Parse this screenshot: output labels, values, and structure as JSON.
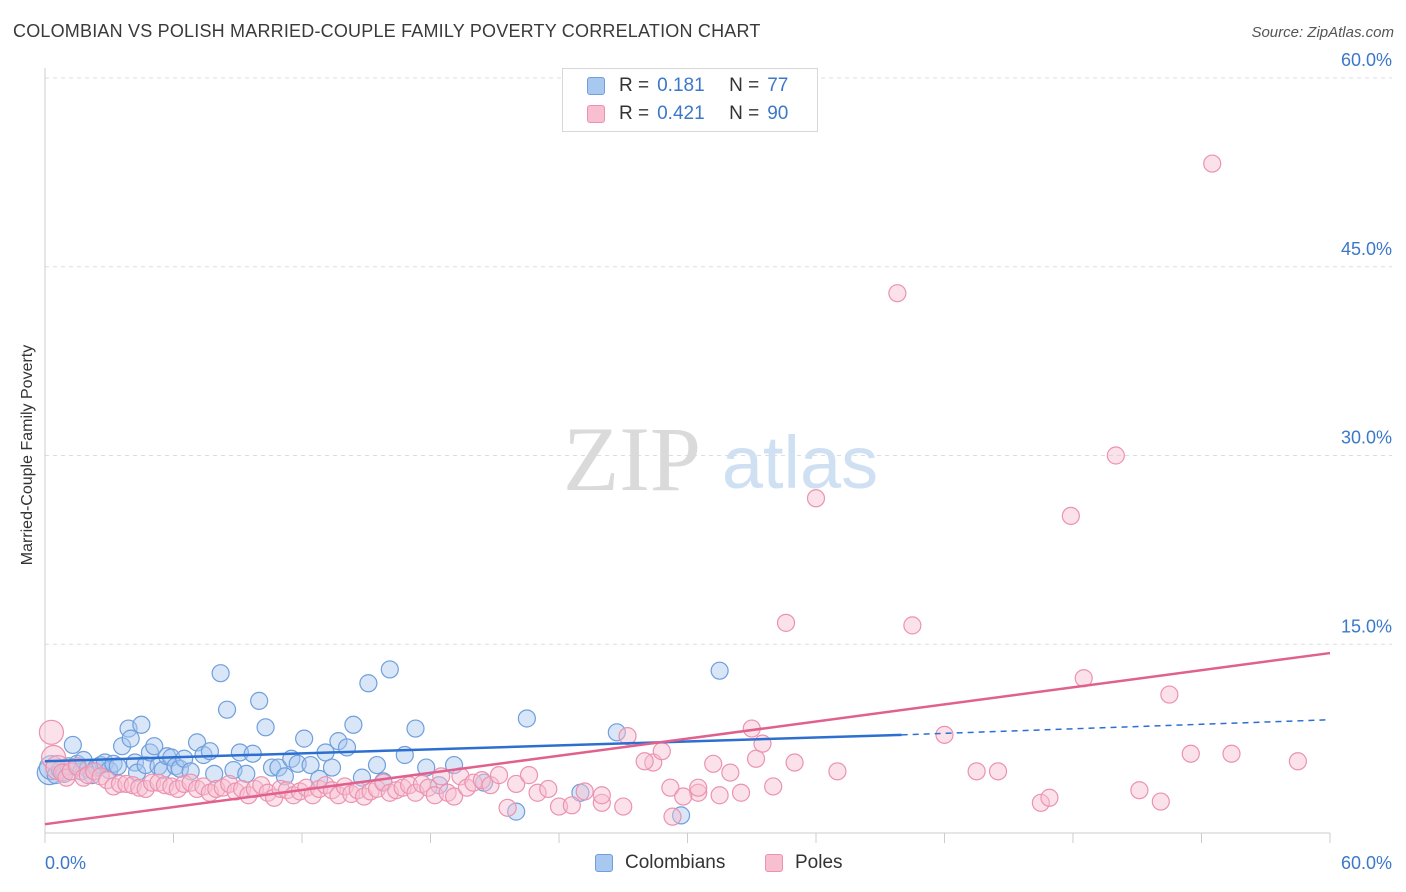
{
  "title": "COLOMBIAN VS POLISH MARRIED-COUPLE FAMILY POVERTY CORRELATION CHART",
  "source": "Source: ZipAtlas.com",
  "watermark": {
    "zip": "ZIP",
    "atlas": "atlas"
  },
  "legend": {
    "rows": [
      {
        "r_label": "R =",
        "r_value": "0.181",
        "n_label": "N =",
        "n_value": "77"
      },
      {
        "r_label": "R =",
        "r_value": "0.421",
        "n_label": "N =",
        "n_value": "90"
      }
    ]
  },
  "bottom_legend": {
    "colombians": "Colombians",
    "poles": "Poles"
  },
  "colors": {
    "colombians_fill": "#a9c8f0",
    "colombians_stroke": "#6f9fdc",
    "colombians_line": "#2c6fd1",
    "poles_fill": "#f7bfd0",
    "poles_stroke": "#ec92b0",
    "poles_line": "#e0608e",
    "tick_text": "#3b78c9",
    "grid": "#dddddd"
  },
  "chart_data": {
    "type": "scatter",
    "title": "COLOMBIAN VS POLISH MARRIED-COUPLE FAMILY POVERTY CORRELATION CHART",
    "xlabel": "",
    "ylabel": "Married-Couple Family Poverty",
    "xlim": [
      0,
      60
    ],
    "ylim": [
      0,
      60
    ],
    "x_tick_labels": [
      "0.0%",
      "60.0%"
    ],
    "y_ticks": [
      15,
      30,
      45,
      60
    ],
    "y_tick_labels": [
      "15.0%",
      "30.0%",
      "45.0%",
      "60.0%"
    ],
    "grid": true,
    "series": [
      {
        "name": "Colombians",
        "r": 0.181,
        "n": 77,
        "trend": {
          "x_start": 0,
          "y_start": 5.7,
          "x_end": 40,
          "y_end": 7.8,
          "dashed_to_x": 60,
          "dashed_to_y": 9.0
        },
        "points": [
          [
            0.2,
            4.8
          ],
          [
            0.3,
            5.2
          ],
          [
            0.5,
            4.6
          ],
          [
            0.7,
            5.0
          ],
          [
            0.9,
            4.7
          ],
          [
            1.1,
            5.3
          ],
          [
            1.3,
            7.0
          ],
          [
            1.5,
            5.5
          ],
          [
            1.7,
            4.9
          ],
          [
            1.8,
            5.8
          ],
          [
            2.0,
            5.1
          ],
          [
            2.2,
            4.6
          ],
          [
            2.4,
            5.2
          ],
          [
            2.6,
            5.4
          ],
          [
            2.8,
            5.6
          ],
          [
            3.0,
            5.0
          ],
          [
            3.2,
            5.5
          ],
          [
            3.4,
            5.3
          ],
          [
            3.6,
            6.9
          ],
          [
            3.9,
            8.3
          ],
          [
            4.0,
            7.5
          ],
          [
            4.2,
            5.6
          ],
          [
            4.3,
            4.8
          ],
          [
            4.5,
            8.6
          ],
          [
            4.7,
            5.4
          ],
          [
            4.9,
            6.4
          ],
          [
            5.1,
            6.9
          ],
          [
            5.3,
            5.3
          ],
          [
            5.5,
            5.0
          ],
          [
            5.7,
            6.1
          ],
          [
            5.9,
            6.0
          ],
          [
            6.1,
            5.3
          ],
          [
            6.3,
            5.1
          ],
          [
            6.5,
            5.9
          ],
          [
            6.8,
            4.9
          ],
          [
            7.1,
            7.2
          ],
          [
            7.4,
            6.2
          ],
          [
            7.7,
            6.5
          ],
          [
            7.9,
            4.7
          ],
          [
            8.2,
            12.7
          ],
          [
            8.5,
            9.8
          ],
          [
            8.8,
            5.0
          ],
          [
            9.1,
            6.4
          ],
          [
            9.4,
            4.7
          ],
          [
            9.7,
            6.3
          ],
          [
            10.0,
            10.5
          ],
          [
            10.3,
            8.4
          ],
          [
            10.6,
            5.2
          ],
          [
            10.9,
            5.2
          ],
          [
            11.2,
            4.5
          ],
          [
            11.5,
            5.9
          ],
          [
            11.8,
            5.5
          ],
          [
            12.1,
            7.5
          ],
          [
            12.4,
            5.4
          ],
          [
            12.8,
            4.3
          ],
          [
            13.1,
            6.4
          ],
          [
            13.4,
            5.2
          ],
          [
            13.7,
            7.3
          ],
          [
            14.1,
            6.8
          ],
          [
            14.4,
            8.6
          ],
          [
            14.8,
            4.4
          ],
          [
            15.1,
            11.9
          ],
          [
            15.5,
            5.4
          ],
          [
            15.8,
            4.1
          ],
          [
            16.1,
            13.0
          ],
          [
            16.8,
            6.2
          ],
          [
            17.3,
            8.3
          ],
          [
            17.8,
            5.2
          ],
          [
            18.4,
            3.8
          ],
          [
            19.1,
            5.4
          ],
          [
            20.5,
            4.0
          ],
          [
            22.0,
            1.7
          ],
          [
            22.5,
            9.1
          ],
          [
            25.0,
            3.2
          ],
          [
            26.7,
            8.0
          ],
          [
            29.7,
            1.4
          ],
          [
            31.5,
            12.9
          ]
        ]
      },
      {
        "name": "Poles",
        "r": 0.421,
        "n": 90,
        "trend": {
          "x_start": 0,
          "y_start": 0.7,
          "x_end": 60,
          "y_end": 14.3
        },
        "points": [
          [
            0.3,
            8.0
          ],
          [
            0.4,
            6.0
          ],
          [
            0.6,
            5.2
          ],
          [
            0.8,
            4.8
          ],
          [
            1.0,
            4.4
          ],
          [
            1.2,
            4.9
          ],
          [
            1.5,
            5.3
          ],
          [
            1.8,
            4.4
          ],
          [
            2.0,
            4.6
          ],
          [
            2.3,
            4.9
          ],
          [
            2.6,
            4.5
          ],
          [
            2.9,
            4.2
          ],
          [
            3.2,
            3.7
          ],
          [
            3.5,
            3.9
          ],
          [
            3.8,
            3.9
          ],
          [
            4.1,
            3.8
          ],
          [
            4.4,
            3.6
          ],
          [
            4.7,
            3.5
          ],
          [
            5.0,
            4.0
          ],
          [
            5.3,
            4.0
          ],
          [
            5.6,
            3.8
          ],
          [
            5.9,
            3.7
          ],
          [
            6.2,
            3.5
          ],
          [
            6.5,
            3.9
          ],
          [
            6.8,
            4.0
          ],
          [
            7.1,
            3.5
          ],
          [
            7.4,
            3.7
          ],
          [
            7.7,
            3.2
          ],
          [
            8.0,
            3.5
          ],
          [
            8.3,
            3.6
          ],
          [
            8.6,
            3.9
          ],
          [
            8.9,
            3.3
          ],
          [
            9.2,
            3.5
          ],
          [
            9.5,
            3.0
          ],
          [
            9.8,
            3.5
          ],
          [
            10.1,
            3.8
          ],
          [
            10.4,
            3.2
          ],
          [
            10.7,
            2.8
          ],
          [
            11.0,
            3.5
          ],
          [
            11.3,
            3.4
          ],
          [
            11.6,
            3.0
          ],
          [
            11.9,
            3.3
          ],
          [
            12.2,
            3.6
          ],
          [
            12.5,
            3.0
          ],
          [
            12.8,
            3.5
          ],
          [
            13.1,
            3.8
          ],
          [
            13.4,
            3.4
          ],
          [
            13.7,
            3.0
          ],
          [
            14.0,
            3.7
          ],
          [
            14.3,
            3.1
          ],
          [
            14.6,
            3.4
          ],
          [
            14.9,
            2.9
          ],
          [
            15.2,
            3.3
          ],
          [
            15.5,
            3.5
          ],
          [
            15.8,
            4.0
          ],
          [
            16.1,
            3.2
          ],
          [
            16.4,
            3.4
          ],
          [
            16.7,
            3.6
          ],
          [
            17.0,
            3.8
          ],
          [
            17.3,
            3.2
          ],
          [
            17.6,
            3.9
          ],
          [
            17.9,
            3.6
          ],
          [
            18.2,
            3.0
          ],
          [
            18.5,
            4.5
          ],
          [
            18.8,
            3.2
          ],
          [
            19.1,
            2.9
          ],
          [
            19.4,
            4.5
          ],
          [
            19.7,
            3.6
          ],
          [
            20.0,
            4.0
          ],
          [
            20.4,
            4.2
          ],
          [
            20.8,
            3.8
          ],
          [
            21.2,
            4.6
          ],
          [
            21.6,
            2.0
          ],
          [
            22.0,
            3.9
          ],
          [
            22.6,
            4.6
          ],
          [
            23.0,
            3.2
          ],
          [
            23.5,
            3.5
          ],
          [
            24.0,
            2.1
          ],
          [
            24.6,
            2.2
          ],
          [
            25.2,
            3.3
          ],
          [
            26.0,
            2.4
          ],
          [
            27.2,
            7.7
          ],
          [
            28.4,
            5.6
          ],
          [
            29.3,
            1.3
          ],
          [
            30.5,
            3.2
          ],
          [
            33.2,
            5.9
          ],
          [
            36.0,
            26.6
          ],
          [
            39.8,
            42.9
          ],
          [
            47.9,
            25.2
          ],
          [
            54.5,
            53.2
          ]
        ]
      }
    ],
    "extra_poles_points": [
      [
        26.0,
        3.0
      ],
      [
        27.0,
        2.1
      ],
      [
        28.0,
        5.7
      ],
      [
        28.8,
        6.5
      ],
      [
        29.2,
        3.6
      ],
      [
        29.8,
        2.9
      ],
      [
        30.5,
        3.6
      ],
      [
        31.2,
        5.5
      ],
      [
        31.5,
        3.0
      ],
      [
        32.0,
        4.8
      ],
      [
        32.5,
        3.2
      ],
      [
        33.0,
        8.3
      ],
      [
        33.5,
        7.1
      ],
      [
        34.0,
        3.7
      ],
      [
        34.6,
        16.7
      ],
      [
        35.0,
        5.6
      ],
      [
        37.0,
        4.9
      ],
      [
        40.5,
        16.5
      ],
      [
        42.0,
        7.8
      ],
      [
        43.5,
        4.9
      ],
      [
        44.5,
        4.9
      ],
      [
        46.5,
        2.4
      ],
      [
        46.9,
        2.8
      ],
      [
        48.5,
        12.3
      ],
      [
        50.0,
        30.0
      ],
      [
        51.1,
        3.4
      ],
      [
        52.1,
        2.5
      ],
      [
        52.5,
        11.0
      ],
      [
        53.5,
        6.3
      ],
      [
        55.4,
        6.3
      ],
      [
        58.5,
        5.7
      ]
    ]
  }
}
